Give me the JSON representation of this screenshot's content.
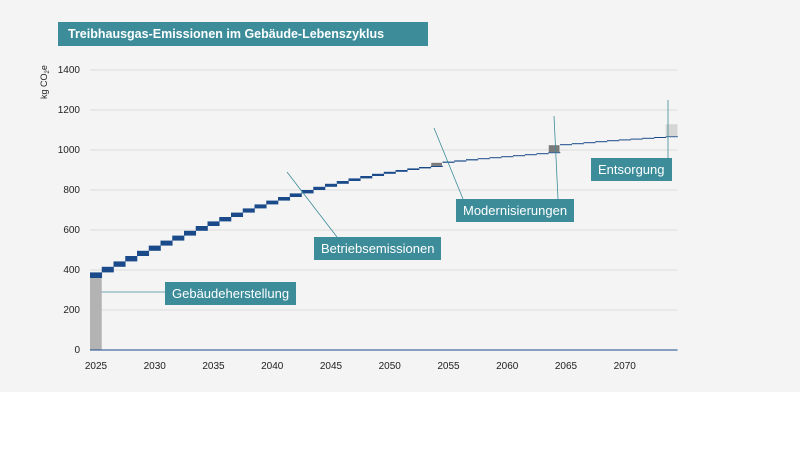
{
  "chart_data": {
    "type": "bar",
    "title": "Treibhausgas-Emissionen im Gebäude-Lebenszyklus",
    "ylabel_base": "kg CO",
    "ylabel_sub": "2",
    "ylabel_suffix": "e",
    "ylim": [
      0,
      1400
    ],
    "yticks": [
      0,
      200,
      400,
      600,
      800,
      1000,
      1200,
      1400
    ],
    "xlim": [
      2025,
      2075
    ],
    "xticks": [
      2025,
      2030,
      2035,
      2040,
      2045,
      2050,
      2055,
      2060,
      2065,
      2070
    ],
    "construction": {
      "year": 2025,
      "value": 360
    },
    "operational": {
      "start_year": 2025,
      "end_year": 2074,
      "values": [
        28,
        28,
        27,
        27,
        26,
        26,
        25,
        25,
        24,
        24,
        23,
        22,
        22,
        21,
        20,
        19,
        18,
        18,
        17,
        16,
        15,
        14,
        13,
        12,
        11,
        10,
        9,
        8,
        7,
        6,
        6,
        6,
        6,
        5,
        5,
        5,
        5,
        5,
        5,
        5,
        5,
        5,
        5,
        5,
        5,
        4,
        4,
        4,
        4,
        4
      ]
    },
    "modernizations": [
      {
        "year": 2054,
        "value": 15
      },
      {
        "year": 2064,
        "value": 35
      }
    ],
    "disposal": {
      "year": 2074,
      "value": 60
    },
    "colors": {
      "operational": "#1a4a8a",
      "construction": "#b3b3b3",
      "modernization": "#7a7a7a",
      "disposal": "#d6d6d6",
      "callout": "#3c8c9a",
      "grid": "#dddddd"
    }
  },
  "labels": {
    "construction": "Gebäudeherstellung",
    "operational": "Betriebsemissionen",
    "modernization": "Modernisierungen",
    "disposal": "Entsorgung"
  }
}
